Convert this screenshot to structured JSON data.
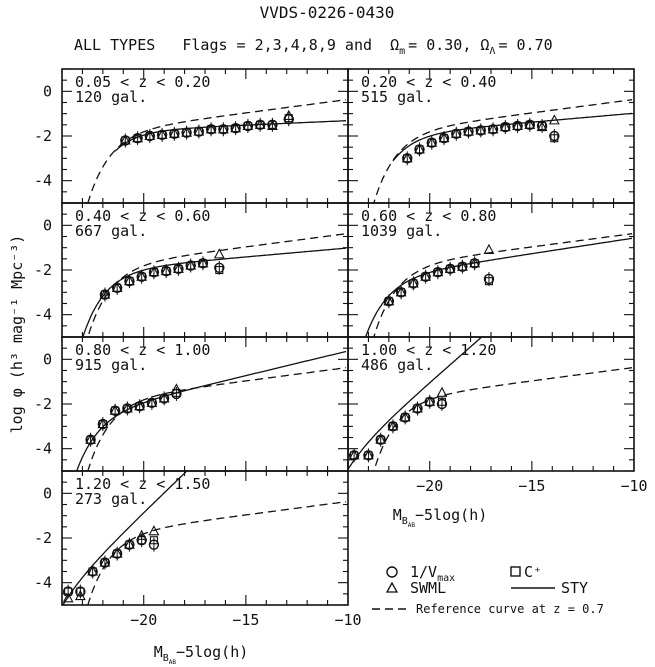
{
  "figure": {
    "title": "VVDS-0226-0430",
    "subtitle_prefix": "ALL TYPES   Flags = 2,3,4,8,9 and  ",
    "omega_m": "Ω",
    "omega_m_sub": "m",
    "omega_m_val": "= 0.30, ",
    "omega_l": "Ω",
    "omega_l_sub": "Λ",
    "omega_l_val": "= 0.70",
    "ylabel": "log φ  (h³ mag⁻¹ Mpc⁻³)",
    "xlabel": "M",
    "xlabel_sub": "B",
    "xlabel_subsub": "AB",
    "xlabel_rest": "−5log(h)",
    "legend": {
      "vmax": "1/V",
      "vmax_sub": "max",
      "cplus": "C⁺",
      "swml": "SWML",
      "sty": "STY",
      "ref": "Reference curve at z = 0.7"
    }
  },
  "chart_data": [
    {
      "type": "scatter",
      "redshift_label": "0.05 < z < 0.20",
      "count_label": "120 gal.",
      "xlim": [
        -24,
        -10
      ],
      "ylim": [
        -5,
        1
      ],
      "x_ticks": [
        -20,
        -15,
        -10
      ],
      "y_ticks": [
        0,
        -2,
        -4
      ],
      "series": [
        {
          "name": "1/Vmax",
          "x": [
            -20.9,
            -20.3,
            -19.7,
            -19.1,
            -18.5,
            -17.9,
            -17.3,
            -16.7,
            -16.1,
            -15.5,
            -14.9,
            -14.3,
            -13.7,
            -12.9
          ],
          "y": [
            -2.2,
            -2.1,
            -2.0,
            -1.95,
            -1.9,
            -1.85,
            -1.8,
            -1.7,
            -1.7,
            -1.65,
            -1.55,
            -1.5,
            -1.5,
            -1.25
          ]
        },
        {
          "name": "SWML",
          "x": [
            -20.9,
            -20.3,
            -19.7,
            -19.1,
            -18.5,
            -17.9,
            -17.3,
            -16.7,
            -16.1,
            -15.5,
            -14.9,
            -14.3,
            -13.7,
            -12.9
          ],
          "y": [
            -2.2,
            -2.1,
            -2.0,
            -1.95,
            -1.9,
            -1.85,
            -1.8,
            -1.7,
            -1.7,
            -1.65,
            -1.55,
            -1.5,
            -1.55,
            -1.1
          ]
        },
        {
          "name": "C+",
          "x": [
            -20.9,
            -20.3,
            -19.7,
            -19.1,
            -18.5,
            -17.9,
            -17.3,
            -16.7,
            -16.1,
            -15.5,
            -14.9,
            -14.3,
            -13.7,
            -12.9
          ],
          "y": [
            -2.2,
            -2.1,
            -2.0,
            -1.95,
            -1.9,
            -1.85,
            -1.8,
            -1.7,
            -1.7,
            -1.65,
            -1.55,
            -1.5,
            -1.5,
            -1.2
          ]
        },
        {
          "name": "STY",
          "mstar": -20.6,
          "phistar": -1.7,
          "alpha": -1.1,
          "mmin": -21.4
        },
        {
          "name": "Reference",
          "mstar": -20.6,
          "phistar": -1.6,
          "alpha": -1.3,
          "mmin": -23.2
        }
      ]
    },
    {
      "type": "scatter",
      "redshift_label": "0.20 < z < 0.40",
      "count_label": "515 gal.",
      "xlim": [
        -24,
        -10
      ],
      "ylim": [
        -5,
        1
      ],
      "x_ticks": [
        -20,
        -15,
        -10
      ],
      "y_ticks": [
        0,
        -2,
        -4
      ],
      "series": [
        {
          "name": "1/Vmax",
          "x": [
            -21.1,
            -20.5,
            -19.9,
            -19.3,
            -18.7,
            -18.1,
            -17.5,
            -16.9,
            -16.3,
            -15.7,
            -15.1,
            -14.5,
            -13.9
          ],
          "y": [
            -3.0,
            -2.6,
            -2.3,
            -2.1,
            -1.9,
            -1.8,
            -1.75,
            -1.7,
            -1.6,
            -1.55,
            -1.5,
            -1.55,
            -2.0
          ]
        },
        {
          "name": "SWML",
          "x": [
            -21.1,
            -20.5,
            -19.9,
            -19.3,
            -18.7,
            -18.1,
            -17.5,
            -16.9,
            -16.3,
            -15.7,
            -15.1,
            -14.5,
            -13.9
          ],
          "y": [
            -3.0,
            -2.6,
            -2.3,
            -2.1,
            -1.9,
            -1.8,
            -1.75,
            -1.7,
            -1.6,
            -1.55,
            -1.5,
            -1.6,
            -1.3
          ]
        },
        {
          "name": "C+",
          "x": [
            -21.1,
            -20.5,
            -19.9,
            -19.3,
            -18.7,
            -18.1,
            -17.5,
            -16.9,
            -16.3,
            -15.7,
            -15.1,
            -14.5,
            -13.9
          ],
          "y": [
            -3.0,
            -2.6,
            -2.3,
            -2.1,
            -1.9,
            -1.8,
            -1.75,
            -1.7,
            -1.6,
            -1.55,
            -1.5,
            -1.55,
            -2.1
          ]
        },
        {
          "name": "STY",
          "mstar": -20.7,
          "phistar": -1.8,
          "alpha": -1.2,
          "mmin": -21.8
        },
        {
          "name": "Reference",
          "mstar": -20.6,
          "phistar": -1.6,
          "alpha": -1.3,
          "mmin": -22.8
        }
      ]
    },
    {
      "type": "scatter",
      "redshift_label": "0.40 < z < 0.60",
      "count_label": "667 gal.",
      "xlim": [
        -24,
        -10
      ],
      "ylim": [
        -5,
        1
      ],
      "x_ticks": [
        -20,
        -15,
        -10
      ],
      "y_ticks": [
        0,
        -2,
        -4
      ],
      "series": [
        {
          "name": "1/Vmax",
          "x": [
            -21.9,
            -21.3,
            -20.7,
            -20.1,
            -19.5,
            -18.9,
            -18.3,
            -17.7,
            -17.1,
            -16.3
          ],
          "y": [
            -3.1,
            -2.8,
            -2.5,
            -2.3,
            -2.1,
            -2.05,
            -1.95,
            -1.8,
            -1.7,
            -1.9
          ]
        },
        {
          "name": "SWML",
          "x": [
            -21.9,
            -21.3,
            -20.7,
            -20.1,
            -19.5,
            -18.9,
            -18.3,
            -17.7,
            -17.1,
            -16.3
          ],
          "y": [
            -3.1,
            -2.8,
            -2.5,
            -2.3,
            -2.1,
            -2.05,
            -1.95,
            -1.8,
            -1.7,
            -1.3
          ]
        },
        {
          "name": "C+",
          "x": [
            -21.9,
            -21.3,
            -20.7,
            -20.1,
            -19.5,
            -18.9,
            -18.3,
            -17.7,
            -17.1,
            -16.3
          ],
          "y": [
            -3.1,
            -2.8,
            -2.5,
            -2.3,
            -2.1,
            -2.05,
            -1.95,
            -1.8,
            -1.7,
            -2.0
          ]
        },
        {
          "name": "STY",
          "mstar": -20.9,
          "phistar": -1.85,
          "alpha": -1.2,
          "mmin": -23.1
        },
        {
          "name": "Reference",
          "mstar": -20.6,
          "phistar": -1.6,
          "alpha": -1.3,
          "mmin": -23.4
        }
      ]
    },
    {
      "type": "scatter",
      "redshift_label": "0.60 < z < 0.80",
      "count_label": "1039 gal.",
      "xlim": [
        -24,
        -10
      ],
      "ylim": [
        -5,
        1
      ],
      "x_ticks": [
        -20,
        -15,
        -10
      ],
      "y_ticks": [
        0,
        -2,
        -4
      ],
      "series": [
        {
          "name": "1/Vmax",
          "x": [
            -22.0,
            -21.4,
            -20.8,
            -20.2,
            -19.6,
            -19.0,
            -18.4,
            -17.8,
            -17.1
          ],
          "y": [
            -3.4,
            -3.0,
            -2.6,
            -2.3,
            -2.1,
            -1.95,
            -1.85,
            -1.7,
            -2.4
          ]
        },
        {
          "name": "SWML",
          "x": [
            -22.0,
            -21.4,
            -20.8,
            -20.2,
            -19.6,
            -19.0,
            -18.4,
            -17.8,
            -17.1
          ],
          "y": [
            -3.4,
            -3.0,
            -2.6,
            -2.3,
            -2.1,
            -1.95,
            -1.85,
            -1.7,
            -1.1
          ]
        },
        {
          "name": "C+",
          "x": [
            -22.0,
            -21.4,
            -20.8,
            -20.2,
            -19.6,
            -19.0,
            -18.4,
            -17.8,
            -17.1
          ],
          "y": [
            -3.4,
            -3.0,
            -2.6,
            -2.3,
            -2.1,
            -1.95,
            -1.85,
            -1.7,
            -2.5
          ]
        },
        {
          "name": "STY",
          "mstar": -21.2,
          "phistar": -2.1,
          "alpha": -1.35,
          "mmin": -23.2
        },
        {
          "name": "Reference",
          "mstar": -20.6,
          "phistar": -1.6,
          "alpha": -1.3,
          "mmin": -22.8
        }
      ]
    },
    {
      "type": "scatter",
      "redshift_label": "0.80 < z < 1.00",
      "count_label": "915 gal.",
      "xlim": [
        -24,
        -10
      ],
      "ylim": [
        -5,
        1
      ],
      "x_ticks": [
        -20,
        -15,
        -10
      ],
      "y_ticks": [
        0,
        -2,
        -4
      ],
      "series": [
        {
          "name": "1/Vmax",
          "x": [
            -22.6,
            -22.0,
            -21.4,
            -20.8,
            -20.2,
            -19.6,
            -19.0,
            -18.4
          ],
          "y": [
            -3.6,
            -2.9,
            -2.3,
            -2.2,
            -2.1,
            -1.95,
            -1.75,
            -1.55
          ]
        },
        {
          "name": "SWML",
          "x": [
            -22.6,
            -22.0,
            -21.4,
            -20.8,
            -20.2,
            -19.6,
            -19.0,
            -18.4
          ],
          "y": [
            -3.6,
            -2.9,
            -2.3,
            -2.2,
            -2.1,
            -1.95,
            -1.75,
            -1.35
          ]
        },
        {
          "name": "C+",
          "x": [
            -22.6,
            -22.0,
            -21.4,
            -20.8,
            -20.2,
            -19.6,
            -19.0,
            -18.4
          ],
          "y": [
            -3.6,
            -2.9,
            -2.3,
            -2.2,
            -2.1,
            -1.95,
            -1.75,
            -1.5
          ]
        },
        {
          "name": "STY",
          "mstar": -21.4,
          "phistar": -2.1,
          "alpha": -1.55,
          "mmin": -23.6
        },
        {
          "name": "Reference",
          "mstar": -20.6,
          "phistar": -1.6,
          "alpha": -1.3,
          "mmin": -23.2
        }
      ]
    },
    {
      "type": "scatter",
      "redshift_label": "1.00 < z < 1.20",
      "count_label": "486 gal.",
      "xlim": [
        -24,
        -10
      ],
      "ylim": [
        -5,
        1
      ],
      "x_ticks": [
        -20,
        -15,
        -10
      ],
      "y_ticks": [
        0,
        -2,
        -4
      ],
      "series": [
        {
          "name": "1/Vmax",
          "x": [
            -23.7,
            -23.0,
            -22.4,
            -21.8,
            -21.2,
            -20.6,
            -20.0,
            -19.4
          ],
          "y": [
            -4.3,
            -4.3,
            -3.6,
            -3.0,
            -2.6,
            -2.2,
            -1.9,
            -2.0
          ]
        },
        {
          "name": "SWML",
          "x": [
            -23.7,
            -23.0,
            -22.4,
            -21.8,
            -21.2,
            -20.6,
            -20.0,
            -19.4
          ],
          "y": [
            -4.3,
            -4.3,
            -3.6,
            -3.0,
            -2.6,
            -2.2,
            -1.9,
            -1.5
          ]
        },
        {
          "name": "C+",
          "x": [
            -23.7,
            -23.0,
            -22.4,
            -21.8,
            -21.2,
            -20.6,
            -20.0,
            -19.4
          ],
          "y": [
            -4.3,
            -4.3,
            -3.6,
            -3.0,
            -2.6,
            -2.2,
            -1.9,
            -1.9
          ]
        },
        {
          "name": "STY",
          "mstar": -23.5,
          "phistar": -3.8,
          "alpha": -3.0,
          "mmin": -24.0
        },
        {
          "name": "Reference",
          "mstar": -20.6,
          "phistar": -1.6,
          "alpha": -1.3,
          "mmin": -23.0
        }
      ]
    },
    {
      "type": "scatter",
      "redshift_label": "1.20 < z < 1.50",
      "count_label": "273 gal.",
      "xlim": [
        -24,
        -10
      ],
      "ylim": [
        -5,
        1
      ],
      "x_ticks": [
        -20,
        -15,
        -10
      ],
      "y_ticks": [
        0,
        -2,
        -4
      ],
      "series": [
        {
          "name": "1/Vmax",
          "x": [
            -23.7,
            -23.1,
            -22.5,
            -21.9,
            -21.3,
            -20.7,
            -20.1,
            -19.5
          ],
          "y": [
            -4.4,
            -4.4,
            -3.5,
            -3.1,
            -2.7,
            -2.3,
            -2.1,
            -2.3
          ]
        },
        {
          "name": "SWML",
          "x": [
            -23.7,
            -23.1,
            -22.5,
            -21.9,
            -21.3,
            -20.7,
            -20.1,
            -19.5
          ],
          "y": [
            -4.7,
            -4.6,
            -3.5,
            -3.1,
            -2.7,
            -2.3,
            -1.9,
            -1.7
          ]
        },
        {
          "name": "C+",
          "x": [
            -23.7,
            -23.1,
            -22.5,
            -21.9,
            -21.3,
            -20.7,
            -20.1,
            -19.5
          ],
          "y": [
            -4.4,
            -4.4,
            -3.5,
            -3.1,
            -2.7,
            -2.3,
            -2.1,
            -2.1
          ]
        },
        {
          "name": "STY",
          "mstar": -23.5,
          "phistar": -3.9,
          "alpha": -3.2,
          "mmin": -24.0
        },
        {
          "name": "Reference",
          "mstar": -20.6,
          "phistar": -1.6,
          "alpha": -1.3,
          "mmin": -23.2
        }
      ]
    }
  ]
}
